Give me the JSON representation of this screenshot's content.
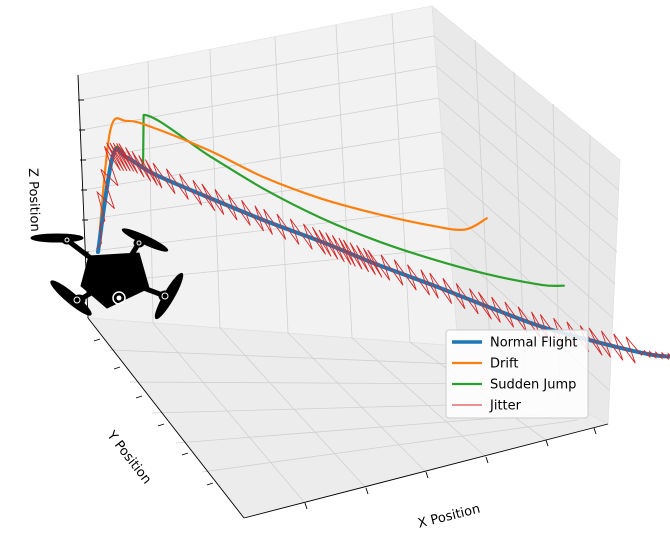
{
  "chart_data": {
    "type": "line",
    "subtype": "3d-trajectory",
    "xlabel": "X Position",
    "ylabel": "Y Position",
    "zlabel": "Z Position",
    "grid": true,
    "legend_position": "lower-right",
    "icon": "quadcopter-drone-icon",
    "series": [
      {
        "name": "Normal Flight",
        "color": "#1f77b4",
        "style": "thick",
        "points": [
          [
            0,
            0
          ],
          [
            0.25,
            0.92
          ],
          [
            0.5,
            0.94
          ],
          [
            1,
            0.84
          ],
          [
            2,
            0.73
          ],
          [
            3,
            0.63
          ],
          [
            4,
            0.55
          ],
          [
            4.5,
            0.5
          ],
          [
            5,
            0.45
          ],
          [
            6,
            0.37
          ],
          [
            7,
            0.28
          ],
          [
            8,
            0.2
          ],
          [
            9,
            0.15
          ],
          [
            10,
            0.13
          ],
          [
            10.5,
            0.15
          ]
        ]
      },
      {
        "name": "Drift",
        "color": "#ff7f0e",
        "style": "solid",
        "points": [
          [
            0,
            0
          ],
          [
            0.2,
            1.15
          ],
          [
            0.5,
            1.28
          ],
          [
            1,
            1.27
          ],
          [
            2,
            1.17
          ],
          [
            3,
            1.03
          ],
          [
            4,
            0.95
          ],
          [
            5,
            0.92
          ],
          [
            6,
            0.92
          ],
          [
            6.6,
            0.95
          ],
          [
            7,
            1.1
          ]
        ]
      },
      {
        "name": "Sudden Jump",
        "color": "#2ca02c",
        "style": "solid",
        "points": [
          [
            0,
            0
          ],
          [
            0.25,
            0.95
          ],
          [
            0.5,
            0.95
          ],
          [
            0.8,
            0.92
          ],
          [
            0.8,
            1.37
          ],
          [
            2,
            1.12
          ],
          [
            3,
            0.92
          ],
          [
            4,
            0.77
          ],
          [
            5,
            0.67
          ],
          [
            6,
            0.61
          ],
          [
            7,
            0.58
          ],
          [
            8,
            0.59
          ],
          [
            8.4,
            0.62
          ]
        ]
      },
      {
        "name": "Jitter",
        "color": "#d62728",
        "style": "thin-zigzag",
        "points": []
      }
    ]
  }
}
